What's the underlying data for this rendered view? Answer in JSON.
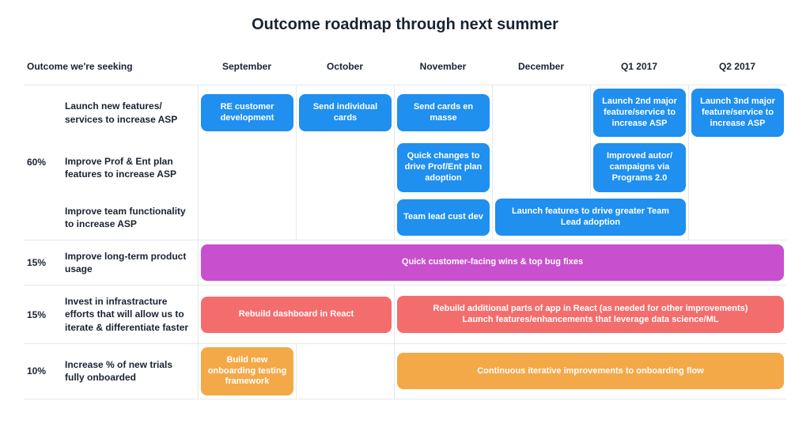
{
  "title": "Outcome roadmap through next summer",
  "colors": {
    "blue": "#1f8ff0",
    "magenta": "#c84fce",
    "coral": "#f46d6d",
    "orange": "#f3a948",
    "border": "#e4e8ee",
    "text": "#1a2332"
  },
  "columns": {
    "outcome_header": "Outcome we're seeking",
    "months": [
      "September",
      "October",
      "November",
      "December",
      "Q1 2017",
      "Q2 2017"
    ]
  },
  "groups": [
    {
      "pct": "60%",
      "rows": [
        {
          "outcome": "Launch new features/ services to increase ASP",
          "cells": [
            {
              "col": 0,
              "span": 1,
              "label": "RE customer development",
              "color": "blue"
            },
            {
              "col": 1,
              "span": 1,
              "label": "Send individual cards",
              "color": "blue"
            },
            {
              "col": 2,
              "span": 1,
              "label": "Send cards en masse",
              "color": "blue"
            },
            {
              "col": 4,
              "span": 1,
              "label": "Launch 2nd major feature/service to increase ASP",
              "color": "blue"
            },
            {
              "col": 5,
              "span": 1,
              "label": "Launch 3nd major feature/service to increase ASP",
              "color": "blue"
            }
          ]
        },
        {
          "outcome": "Improve Prof & Ent plan features to increase ASP",
          "cells": [
            {
              "col": 2,
              "span": 1,
              "label": "Quick changes to drive Prof/Ent plan adoption",
              "color": "blue"
            },
            {
              "col": 4,
              "span": 1,
              "label": "Improved autor/ campaigns via Programs 2.0",
              "color": "blue"
            }
          ]
        },
        {
          "outcome": "Improve team functionality to increase ASP",
          "border_bottom": true,
          "cells": [
            {
              "col": 2,
              "span": 1,
              "label": "Team lead cust dev",
              "color": "blue"
            },
            {
              "col": 3,
              "span": 2,
              "label": "Launch features to drive greater Team Lead adoption",
              "color": "blue"
            }
          ]
        }
      ]
    },
    {
      "pct": "15%",
      "rows": [
        {
          "outcome": "Improve long-term product usage",
          "border_bottom": true,
          "cells": [
            {
              "col": 0,
              "span": 6,
              "label": "Quick customer-facing wins & top bug fixes",
              "color": "magenta"
            }
          ]
        }
      ]
    },
    {
      "pct": "15%",
      "rows": [
        {
          "outcome": "Invest in infrastracture efforts that will allow us to iterate & differentiate faster",
          "border_bottom": true,
          "cells": [
            {
              "col": 0,
              "span": 2,
              "label": "Rebuild dashboard in React",
              "color": "coral"
            },
            {
              "col": 2,
              "span": 4,
              "label": "Rebuild additional parts of app in React (as needed for other improvements)",
              "label2": "Launch features/enhancements that leverage data science/ML",
              "color": "coral"
            }
          ]
        }
      ]
    },
    {
      "pct": "10%",
      "rows": [
        {
          "outcome": "Increase % of new trials fully onboarded",
          "border_bottom": true,
          "cells": [
            {
              "col": 0,
              "span": 1,
              "label": "Build new onboarding testing framework",
              "color": "orange"
            },
            {
              "col": 2,
              "span": 4,
              "label": "Continuous iterative improvements to onboarding flow",
              "color": "orange"
            }
          ]
        }
      ]
    }
  ]
}
